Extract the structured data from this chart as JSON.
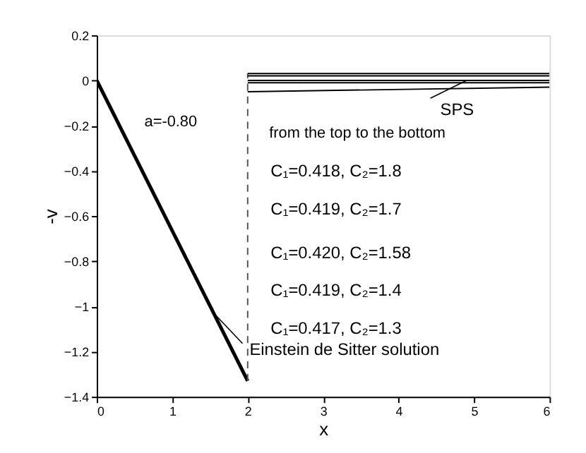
{
  "chart_data": {
    "type": "line",
    "xlabel": "x",
    "ylabel": "-v",
    "xlim": [
      0,
      6
    ],
    "ylim": [
      -1.4,
      0.2
    ],
    "xticks": [
      0,
      1,
      2,
      3,
      4,
      5,
      6
    ],
    "yticks": [
      -1.4,
      -1.2,
      -1,
      -0.8,
      -0.6,
      -0.4,
      -0.2,
      0,
      0.2
    ],
    "grid": false,
    "series": [
      {
        "color": "#000000",
        "x": [
          0,
          2
        ],
        "values": [
          0,
          -1.33
        ]
      },
      {
        "color": "#555555",
        "x": [
          2,
          2
        ],
        "values": [
          -1.33,
          0.03
        ],
        "line_style": "dashed"
      },
      {
        "color": "#000000",
        "x": [
          2,
          6
        ],
        "values": [
          0.03,
          0.03
        ]
      },
      {
        "color": "#000000",
        "x": [
          2,
          6
        ],
        "values": [
          0.02,
          0.02
        ]
      },
      {
        "color": "#000000",
        "x": [
          2,
          6
        ],
        "values": [
          0.0,
          0.0
        ]
      },
      {
        "color": "#000000",
        "x": [
          2,
          6
        ],
        "values": [
          -0.01,
          -0.01
        ]
      },
      {
        "color": "#000000",
        "x": [
          2,
          6
        ],
        "values": [
          -0.05,
          -0.03
        ]
      }
    ],
    "annotations": [
      "a=-0.80",
      {
        "text": "SPS",
        "x": 4.9,
        "y": 0.0
      },
      "from the top to the bottom",
      "C₁=0.418, C₂=1.8",
      "C₁=0.419, C₂=1.7",
      "C₁=0.420, C₂=1.58",
      "C₁=0.419, C₂=1.4",
      "C₁=0.417, C₂=1.3",
      {
        "text": "Einstein de Sitter solution",
        "x": 1.55,
        "y": -1.03
      }
    ]
  }
}
